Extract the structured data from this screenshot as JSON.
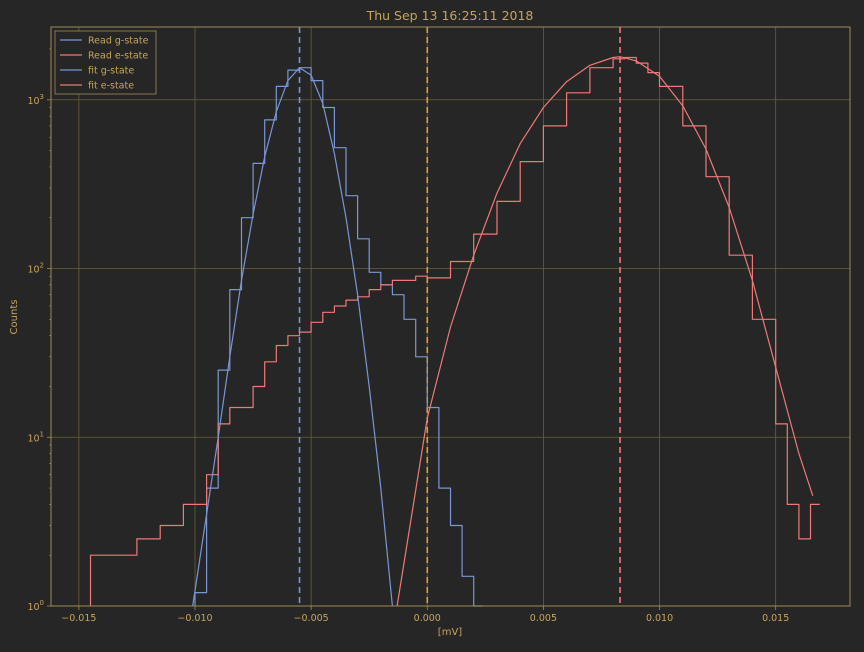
{
  "colors": {
    "background": "#262626",
    "axes": "#a08a55",
    "text": "#c8a45c",
    "grid": "#6b5f3a",
    "g_state": "#7b96d6",
    "e_state": "#f07878",
    "threshold": "#e0a030"
  },
  "chart_data": {
    "type": "line",
    "title": "Thu Sep 13 16:25:11 2018",
    "xlabel": "[mV]",
    "ylabel": "Counts",
    "x_scale": "linear",
    "y_scale": "log",
    "xlim": [
      -0.0162,
      0.0182
    ],
    "ylim": [
      1,
      2700
    ],
    "grid": true,
    "legend_position": "top-left",
    "x_ticks": [
      {
        "value": -0.015,
        "label": "−0.015"
      },
      {
        "value": -0.01,
        "label": "−0.010"
      },
      {
        "value": -0.005,
        "label": "−0.005"
      },
      {
        "value": 0.0,
        "label": "0.000"
      },
      {
        "value": 0.005,
        "label": "0.005"
      },
      {
        "value": 0.01,
        "label": "0.010"
      },
      {
        "value": 0.015,
        "label": "0.015"
      }
    ],
    "y_ticks": [
      {
        "value": 1,
        "base": "10",
        "exp": "0"
      },
      {
        "value": 10,
        "base": "10",
        "exp": "1"
      },
      {
        "value": 100,
        "base": "10",
        "exp": "2"
      },
      {
        "value": 1000,
        "base": "10",
        "exp": "3"
      }
    ],
    "series": [
      {
        "name": "Read g-state",
        "kind": "step",
        "color": "#7b96d6",
        "x": [
          -0.01,
          -0.0095,
          -0.009,
          -0.0085,
          -0.008,
          -0.0075,
          -0.007,
          -0.0065,
          -0.006,
          -0.0055,
          -0.005,
          -0.0045,
          -0.004,
          -0.0035,
          -0.003,
          -0.0025,
          -0.002,
          -0.0015,
          -0.001,
          -0.0005,
          0.0,
          0.0005,
          0.001,
          0.0015,
          0.002
        ],
        "y": [
          1.2,
          5,
          25,
          75,
          200,
          420,
          760,
          1200,
          1500,
          1550,
          1300,
          900,
          520,
          270,
          150,
          95,
          80,
          70,
          50,
          30,
          15,
          5,
          3,
          1.5,
          1
        ]
      },
      {
        "name": "Read e-state",
        "kind": "step",
        "color": "#f07878",
        "x": [
          -0.0145,
          -0.0125,
          -0.0115,
          -0.0105,
          -0.0095,
          -0.009,
          -0.0085,
          -0.008,
          -0.0075,
          -0.007,
          -0.0065,
          -0.006,
          -0.0055,
          -0.005,
          -0.0045,
          -0.004,
          -0.0035,
          -0.003,
          -0.0025,
          -0.002,
          -0.0015,
          -0.001,
          -0.0005,
          0.0,
          0.001,
          0.002,
          0.003,
          0.004,
          0.005,
          0.006,
          0.007,
          0.008,
          0.0085,
          0.009,
          0.0095,
          0.01,
          0.011,
          0.012,
          0.013,
          0.014,
          0.015,
          0.0155,
          0.016,
          0.0165
        ],
        "y": [
          2,
          2.5,
          3,
          4,
          6,
          12,
          15,
          15,
          20,
          28,
          35,
          40,
          42,
          48,
          55,
          60,
          65,
          68,
          75,
          80,
          85,
          85,
          90,
          88,
          110,
          160,
          250,
          430,
          700,
          1100,
          1550,
          1750,
          1780,
          1650,
          1450,
          1200,
          700,
          350,
          120,
          50,
          12,
          4,
          2.5,
          4
        ]
      },
      {
        "name": "fit g-state",
        "kind": "line",
        "color": "#7b96d6",
        "x": [
          -0.0101,
          -0.0095,
          -0.009,
          -0.0085,
          -0.008,
          -0.0075,
          -0.007,
          -0.0065,
          -0.006,
          -0.0055,
          -0.005,
          -0.0045,
          -0.004,
          -0.0035,
          -0.003,
          -0.0025,
          -0.002,
          -0.0015
        ],
        "y": [
          1.0,
          3.5,
          10,
          30,
          85,
          210,
          460,
          850,
          1300,
          1550,
          1400,
          950,
          480,
          200,
          70,
          20,
          5,
          1
        ]
      },
      {
        "name": "fit e-state",
        "kind": "line",
        "color": "#f07878",
        "x": [
          -0.0013,
          0.0,
          0.001,
          0.002,
          0.003,
          0.004,
          0.005,
          0.006,
          0.007,
          0.008,
          0.0083,
          0.009,
          0.01,
          0.011,
          0.012,
          0.013,
          0.014,
          0.015,
          0.016,
          0.0166
        ],
        "y": [
          1.0,
          13,
          45,
          120,
          280,
          550,
          900,
          1280,
          1600,
          1780,
          1800,
          1700,
          1380,
          920,
          510,
          230,
          85,
          26,
          8,
          4.5
        ]
      }
    ],
    "vertical_lines": [
      {
        "x": -0.0055,
        "color": "#7b96d6",
        "style": "dashed"
      },
      {
        "x": 0.0,
        "color": "#e0a030",
        "style": "dashed"
      },
      {
        "x": 0.0083,
        "color": "#f07878",
        "style": "dashed"
      }
    ]
  }
}
